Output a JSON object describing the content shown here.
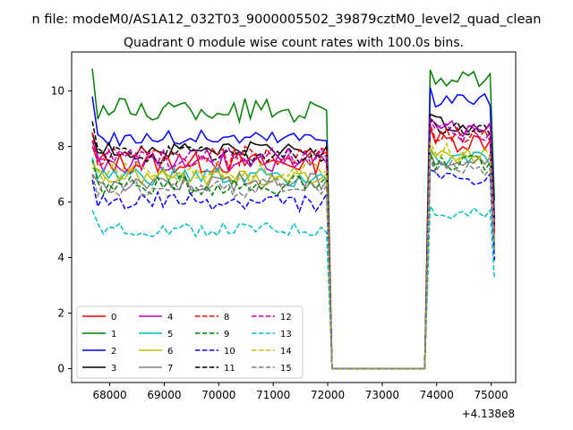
{
  "figure": {
    "suptitle": "n file: modeM0/AS1A12_032T03_9000005502_39879cztM0_level2_quad_clean",
    "title": "Quadrant 0 module wise count rates with 100.0s bins.",
    "offset_label": "+4.138e8"
  },
  "chart_data": {
    "type": "line",
    "title": "Quadrant 0 module wise count rates with 100.0s bins.",
    "xlabel": "",
    "ylabel": "",
    "x_offset": 413800000,
    "xlim": [
      67300,
      75450
    ],
    "ylim": [
      -0.5,
      11.4
    ],
    "xticks": [
      68000,
      69000,
      70000,
      71000,
      72000,
      73000,
      74000,
      75000
    ],
    "yticks": [
      0,
      2,
      4,
      6,
      8,
      10
    ],
    "grid": false,
    "legend_position": "lower-left",
    "legend_columns": 4,
    "x_start": 67680,
    "x_step": 100,
    "gap_start": 72080,
    "gap_end": 73780,
    "seg1_points": 44,
    "seg2_points": 12,
    "series": [
      {
        "name": "0",
        "color": "#ff0000",
        "dash": "solid",
        "mean1": 7.4,
        "amp1": 0.4,
        "mean2": 8.2,
        "amp2": 0.4,
        "start1": 8.0,
        "end1": 7.8
      },
      {
        "name": "1",
        "color": "#008000",
        "dash": "solid",
        "mean1": 9.3,
        "amp1": 0.45,
        "mean2": 10.4,
        "amp2": 0.3,
        "start1": 10.8,
        "end1": 9.3
      },
      {
        "name": "2",
        "color": "#0000ff",
        "dash": "solid",
        "mean1": 8.3,
        "amp1": 0.3,
        "mean2": 9.7,
        "amp2": 0.35,
        "start1": 9.8,
        "end1": 8.2
      },
      {
        "name": "3",
        "color": "#000000",
        "dash": "solid",
        "mean1": 7.9,
        "amp1": 0.3,
        "mean2": 8.8,
        "amp2": 0.3,
        "start1": 8.5,
        "end1": 8.0
      },
      {
        "name": "4",
        "color": "#bf00bf",
        "dash": "solid",
        "mean1": 7.4,
        "amp1": 0.35,
        "mean2": 8.6,
        "amp2": 0.35,
        "start1": 8.2,
        "end1": 7.4
      },
      {
        "name": "5",
        "color": "#00bfbf",
        "dash": "solid",
        "mean1": 6.9,
        "amp1": 0.35,
        "mean2": 7.5,
        "amp2": 0.3,
        "start1": 7.6,
        "end1": 6.8
      },
      {
        "name": "6",
        "color": "#bfbf00",
        "dash": "solid",
        "mean1": 6.9,
        "amp1": 0.3,
        "mean2": 7.6,
        "amp2": 0.3,
        "start1": 7.2,
        "end1": 7.0
      },
      {
        "name": "7",
        "color": "#808080",
        "dash": "solid",
        "mean1": 6.7,
        "amp1": 0.35,
        "mean2": 7.4,
        "amp2": 0.3,
        "start1": 7.0,
        "end1": 6.8
      },
      {
        "name": "8",
        "color": "#ff0000",
        "dash": "dashed",
        "mean1": 7.6,
        "amp1": 0.4,
        "mean2": 8.4,
        "amp2": 0.35,
        "start1": 8.5,
        "end1": 7.9
      },
      {
        "name": "9",
        "color": "#008000",
        "dash": "dashed",
        "mean1": 6.6,
        "amp1": 0.35,
        "mean2": 7.4,
        "amp2": 0.3,
        "start1": 7.5,
        "end1": 6.9
      },
      {
        "name": "10",
        "color": "#0000ff",
        "dash": "dashed",
        "mean1": 6.0,
        "amp1": 0.35,
        "mean2": 6.8,
        "amp2": 0.3,
        "start1": 6.8,
        "end1": 6.3
      },
      {
        "name": "11",
        "color": "#000000",
        "dash": "dashed",
        "mean1": 7.7,
        "amp1": 0.35,
        "mean2": 8.6,
        "amp2": 0.3,
        "start1": 8.9,
        "end1": 7.6
      },
      {
        "name": "12",
        "color": "#bf00bf",
        "dash": "dashed",
        "mean1": 7.6,
        "amp1": 0.35,
        "mean2": 8.5,
        "amp2": 0.35,
        "start1": 8.2,
        "end1": 7.6
      },
      {
        "name": "13",
        "color": "#00bfbf",
        "dash": "dashed",
        "mean1": 5.0,
        "amp1": 0.25,
        "mean2": 5.5,
        "amp2": 0.3,
        "start1": 5.7,
        "end1": 4.9
      },
      {
        "name": "14",
        "color": "#bfbf00",
        "dash": "dashed",
        "mean1": 7.1,
        "amp1": 0.35,
        "mean2": 7.8,
        "amp2": 0.3,
        "start1": 7.4,
        "end1": 7.1
      },
      {
        "name": "15",
        "color": "#808080",
        "dash": "dashed",
        "mean1": 6.5,
        "amp1": 0.35,
        "mean2": 7.2,
        "amp2": 0.3,
        "start1": 7.0,
        "end1": 6.6
      }
    ]
  }
}
